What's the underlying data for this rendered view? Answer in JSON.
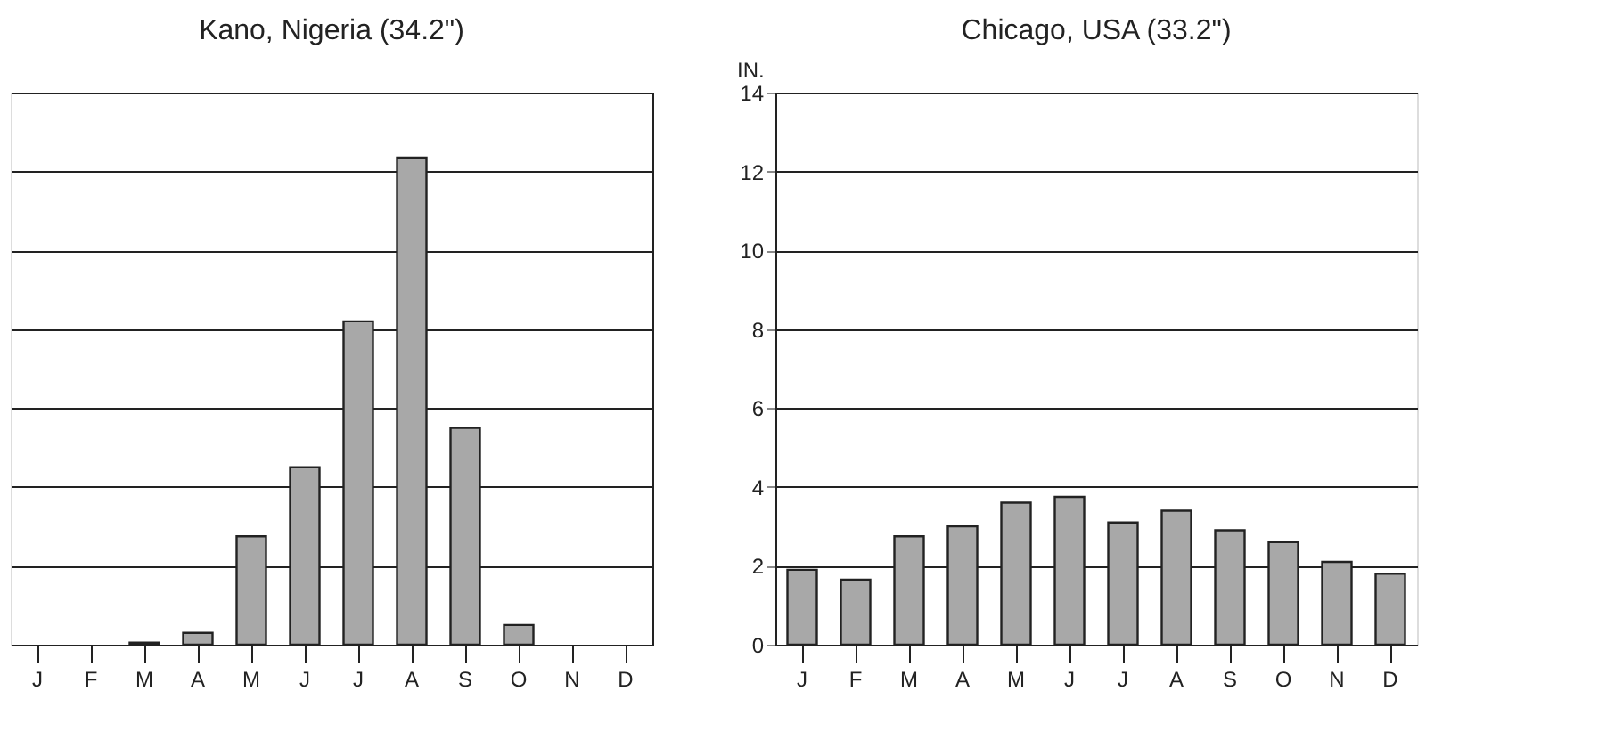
{
  "chart_data": [
    {
      "type": "bar",
      "title": "Kano, Nigeria (34.2\")",
      "categories": [
        "J",
        "F",
        "M",
        "A",
        "M",
        "J",
        "J",
        "A",
        "S",
        "O",
        "N",
        "D"
      ],
      "values": [
        0,
        0,
        0.05,
        0.3,
        2.75,
        4.5,
        8.2,
        12.35,
        5.5,
        0.5,
        0,
        0
      ],
      "color": "#a8a8a8",
      "ylim": [
        0,
        14
      ],
      "yticks": [
        0,
        2,
        4,
        6,
        8,
        10,
        12,
        14
      ],
      "grid": "y",
      "tick_labels": "x"
    },
    {
      "type": "bar",
      "title": "Chicago, USA (33.2\")",
      "ylabel": "IN.",
      "categories": [
        "J",
        "F",
        "M",
        "A",
        "M",
        "J",
        "J",
        "A",
        "S",
        "O",
        "N",
        "D"
      ],
      "values": [
        1.9,
        1.65,
        2.75,
        3.0,
        3.6,
        3.75,
        3.1,
        3.4,
        2.9,
        2.6,
        2.1,
        1.8
      ],
      "color": "#a8a8a8",
      "ylim": [
        0,
        14
      ],
      "yticks": [
        0,
        2,
        4,
        6,
        8,
        10,
        12,
        14
      ],
      "grid": "y"
    }
  ]
}
